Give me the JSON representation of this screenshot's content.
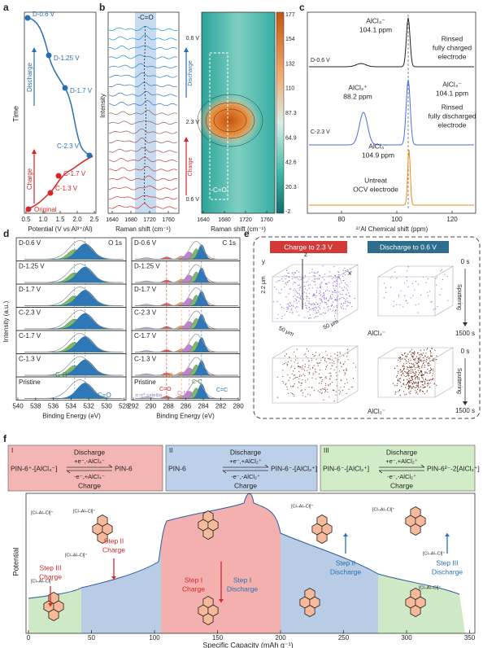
{
  "panel_a": {
    "label": "a",
    "y_label": "Time",
    "x_label": "Potential (V vs Al³⁺/Al)",
    "x_ticks": [
      "0.5",
      "1.0",
      "1.5",
      "2.0",
      "2.5"
    ],
    "points": [
      "D-0.6 V",
      "D-1.25 V",
      "D-1.7 V",
      "C-2.3 V",
      "C-1.7 V",
      "C-1.3 V",
      "Original"
    ],
    "arrows": [
      "Discharge",
      "Charge"
    ]
  },
  "panel_b": {
    "label": "b",
    "band_label": "-C=O",
    "y_label": "Intensity",
    "x_label": "Raman shift (cm⁻¹)",
    "x_ticks": [
      "1640",
      "1680",
      "1720",
      "1760"
    ],
    "map_x_label": "Raman shift (cm⁻¹)",
    "map_x_ticks": [
      "1640",
      "1680",
      "1720",
      "1760"
    ],
    "voltages": [
      "0.6 V",
      "2.3 V",
      "0.6 V"
    ],
    "arrows": [
      "Discharge",
      "Charge"
    ],
    "box_label": "-C=O",
    "colorbar_ticks": [
      "177",
      "154",
      "132",
      "110",
      "87.3",
      "64.9",
      "42.6",
      "20.3",
      "-2"
    ]
  },
  "panel_c": {
    "label": "c",
    "traces": [
      "D-0.6 V",
      "C-2.3 V"
    ],
    "annotations": [
      [
        "AlCl₄⁻",
        "104.1 ppm"
      ],
      [
        "AlCl₂⁺",
        "88.2 ppm"
      ],
      [
        "AlCl₄⁻",
        "104.1 ppm"
      ],
      [
        "AlCl₄⁻",
        "104.9 ppm"
      ]
    ],
    "captions": [
      [
        "Rinsed",
        "fully charged",
        "electrode"
      ],
      [
        "Rinsed",
        "fully discharged",
        "electrode"
      ],
      [
        "Untreat",
        "OCV electrode"
      ]
    ],
    "x_ticks": [
      "80",
      "100",
      "120"
    ],
    "x_label": "²⁷Al Chemical shift (ppm)"
  },
  "panel_d": {
    "label": "d",
    "y_label": "Intensity (a.u.)",
    "rows": [
      "D-0.6 V",
      "D-1.25 V",
      "D-1.7 V",
      "C-2.3 V",
      "C-1.7 V",
      "C-1.3 V",
      "Pristine"
    ],
    "o_title": "O 1s",
    "c_title": "C 1s",
    "o_peaks": [
      "C-O",
      "C=O"
    ],
    "c_peaks": [
      "C-O",
      "C-C",
      "C=O",
      "C-N",
      "C=C",
      "π-π* satelite"
    ],
    "o_x_ticks": [
      "540",
      "538",
      "536",
      "534",
      "532",
      "530",
      "528"
    ],
    "c_x_ticks": [
      "292",
      "290",
      "288",
      "286",
      "284",
      "282",
      "280"
    ],
    "x_label": "Binding Energy (eV)"
  },
  "panel_e": {
    "label": "e",
    "tags": [
      "Charge to 2.3 V",
      "Discharge to 0.6 V"
    ],
    "axes": [
      "z",
      "y",
      "x"
    ],
    "dims": [
      "2.2 μm",
      "50 μm",
      "50 μm"
    ],
    "species": [
      "AlCl₄⁻",
      "AlCl₂⁻"
    ],
    "times": [
      "0 s",
      "1500 s",
      "0 s",
      "1500 s"
    ],
    "sputtering": "Sputtering"
  },
  "panel_f": {
    "label": "f",
    "steps": [
      {
        "numeral": "I",
        "top": "Discharge",
        "over": "+e⁻,-AlCl₄⁻",
        "under": "-e⁻,+AlCl₄⁻",
        "bottom": "Charge",
        "left": "PIN-6⁺-[AlCl₄⁻]",
        "right": "PIN-6"
      },
      {
        "numeral": "II",
        "top": "Discharge",
        "over": "+e⁻,+AlCl₂⁺",
        "under": "-e⁻,-AlCl₂⁺",
        "bottom": "Charge",
        "left": "PIN-6",
        "right": "PIN-6⁻-[AlCl₂⁺]"
      },
      {
        "numeral": "III",
        "top": "Discharge",
        "over": "+e⁻,+AlCl₂⁺",
        "under": "-e⁻,-AlCl₂⁺",
        "bottom": "Charge",
        "left": "PIN-6⁻-[AlCl₂⁺]",
        "right": "PIN-6²⁻-2[AlCl₂⁺]"
      }
    ],
    "y_label": "Potential",
    "x_label": "Specific Capacity (mAh g⁻¹)",
    "x_ticks": [
      "0",
      "50",
      "100",
      "150",
      "200",
      "250",
      "300",
      "350"
    ],
    "stage_labels": [
      [
        "Step III",
        "Charge"
      ],
      [
        "Step II",
        "Charge"
      ],
      [
        "Step I",
        "Charge"
      ],
      [
        "Step I",
        "Discharge"
      ],
      [
        "Step II",
        "Discharge"
      ],
      [
        "Step III",
        "Discharge"
      ]
    ],
    "ion_label": "[Cl–Al–Cl]⁺"
  }
}
